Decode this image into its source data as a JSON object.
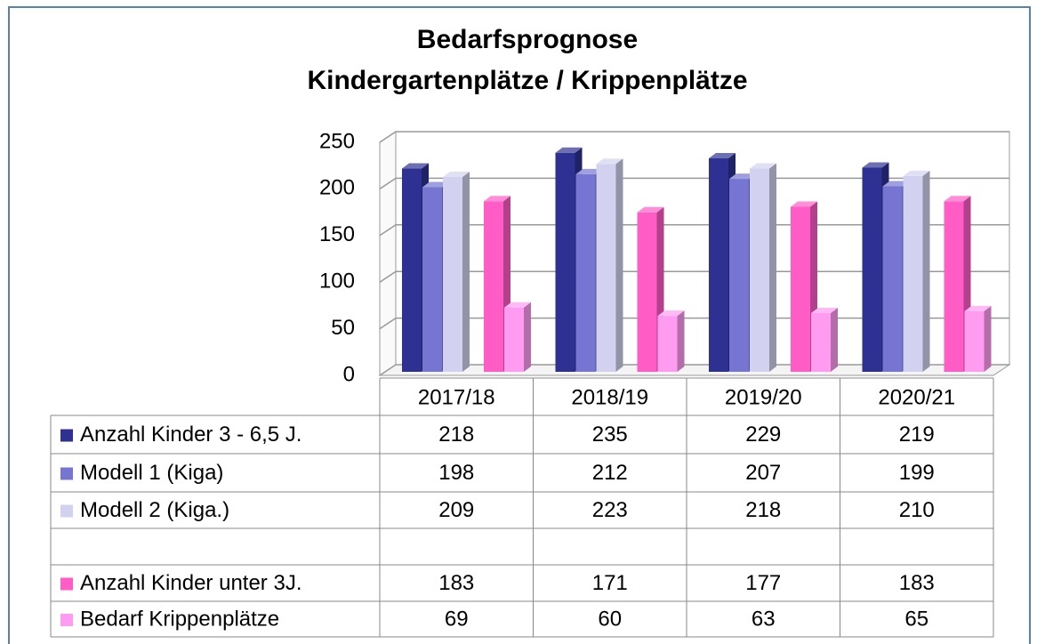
{
  "chart_data": {
    "type": "bar3d",
    "title": "Bedarfsprognose",
    "subtitle": "Kindergartenplätze / Krippenplätze",
    "categories": [
      "2017/18",
      "2018/19",
      "2019/20",
      "2020/21"
    ],
    "series": [
      {
        "name": "Anzahl Kinder 3 - 6,5 J.",
        "color": "#2e3192",
        "values": [
          218,
          235,
          229,
          219
        ]
      },
      {
        "name": "Modell 1 (Kiga)",
        "color": "#7676d2",
        "values": [
          198,
          212,
          207,
          199
        ]
      },
      {
        "name": "Modell 2 (Kiga.)",
        "color": "#d2d2f0",
        "values": [
          209,
          223,
          218,
          210
        ]
      },
      {
        "name": "Anzahl Kinder unter 3J.",
        "color": "#ff5cc6",
        "values": [
          183,
          171,
          177,
          183
        ]
      },
      {
        "name": "Bedarf Krippenplätze",
        "color": "#ff9cf2",
        "values": [
          69,
          60,
          63,
          65
        ]
      }
    ],
    "ylim": [
      0,
      250
    ],
    "yticks": [
      0,
      50,
      100,
      150,
      200,
      250
    ],
    "grid": true
  }
}
